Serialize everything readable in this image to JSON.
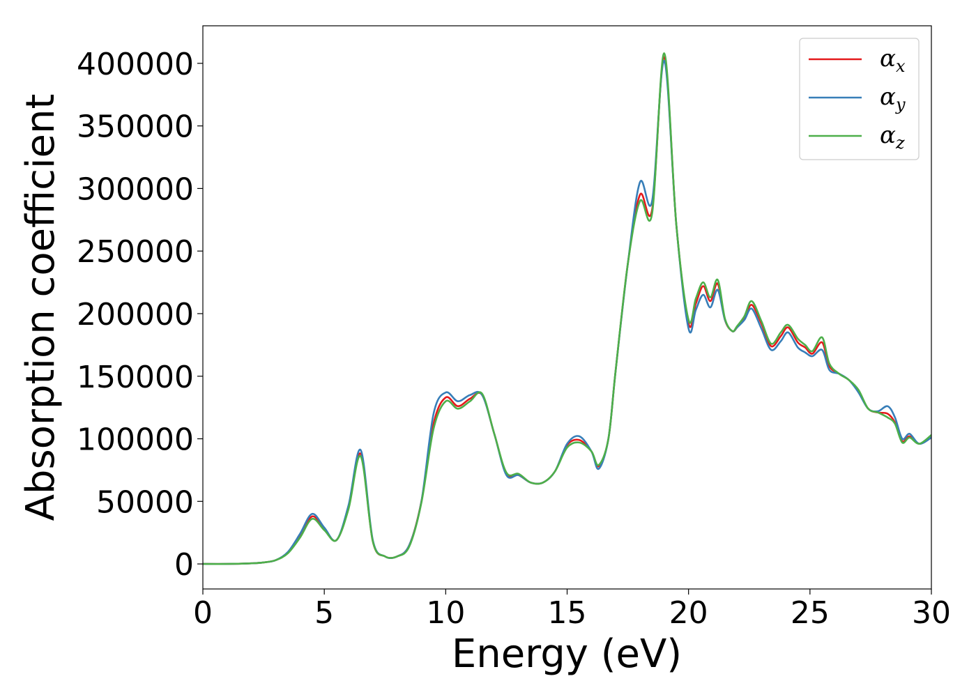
{
  "chart_data": {
    "type": "line",
    "xlabel": "Energy (eV)",
    "ylabel": "Absorption coefficient",
    "xlim": [
      0,
      30
    ],
    "ylim": [
      -20000,
      430000
    ],
    "xticks": [
      0,
      5,
      10,
      15,
      20,
      25,
      30
    ],
    "yticks": [
      0,
      50000,
      100000,
      150000,
      200000,
      250000,
      300000,
      350000,
      400000
    ],
    "grid": false,
    "legend_position": "top-right",
    "x": [
      0,
      1,
      2,
      2.5,
      3,
      3.5,
      4,
      4.5,
      5,
      5.5,
      6,
      6.5,
      7,
      7.5,
      8,
      8.5,
      9,
      9.5,
      10,
      10.5,
      11,
      11.5,
      12,
      12.5,
      13,
      13.5,
      14,
      14.5,
      15,
      15.5,
      16,
      16.3,
      16.7,
      17,
      17.5,
      18,
      18.5,
      19,
      19.5,
      20,
      20.3,
      20.6,
      20.9,
      21.2,
      21.5,
      21.8,
      22,
      22.3,
      22.6,
      23,
      23.4,
      23.8,
      24.1,
      24.5,
      24.8,
      25.1,
      25.5,
      25.8,
      26.2,
      26.6,
      27,
      27.4,
      27.8,
      28.2,
      28.5,
      28.8,
      29.1,
      29.5,
      30
    ],
    "series": [
      {
        "name": "α",
        "subscript": "x",
        "color": "#e41a1c",
        "values": [
          0,
          0,
          500,
          1200,
          3000,
          9000,
          22000,
          38000,
          28000,
          19000,
          45000,
          88000,
          18000,
          6000,
          6000,
          15000,
          50000,
          112000,
          133000,
          126000,
          132000,
          135000,
          104000,
          72000,
          71000,
          65000,
          65000,
          74000,
          95000,
          99000,
          90000,
          78000,
          100000,
          155000,
          240000,
          295000,
          283000,
          405000,
          270000,
          192000,
          208000,
          222000,
          210000,
          224000,
          195000,
          186000,
          189000,
          196000,
          207000,
          192000,
          174000,
          182000,
          189000,
          177000,
          173000,
          168000,
          177000,
          158000,
          152000,
          147000,
          138000,
          124000,
          121000,
          120000,
          113000,
          98000,
          102000,
          96000,
          101000
        ]
      },
      {
        "name": "α",
        "subscript": "y",
        "color": "#377eb8",
        "values": [
          0,
          0,
          500,
          1200,
          3000,
          9500,
          24000,
          40000,
          29000,
          19000,
          47000,
          91000,
          19000,
          6000,
          6000,
          15000,
          50000,
          120000,
          137000,
          130000,
          135000,
          135000,
          104000,
          71000,
          71000,
          65000,
          65000,
          74000,
          96000,
          102000,
          90000,
          76000,
          100000,
          155000,
          240000,
          305000,
          290000,
          402000,
          270000,
          188000,
          203000,
          215000,
          205000,
          219000,
          195000,
          186000,
          189000,
          195000,
          204000,
          188000,
          171000,
          178000,
          185000,
          173000,
          169000,
          166000,
          171000,
          155000,
          152000,
          147000,
          137000,
          124000,
          122000,
          126000,
          117000,
          100000,
          104000,
          96000,
          101000
        ]
      },
      {
        "name": "α",
        "subscript": "z",
        "color": "#4daf4a",
        "values": [
          0,
          0,
          500,
          1200,
          3000,
          8500,
          21000,
          36000,
          27000,
          19000,
          44000,
          86000,
          18000,
          6000,
          6000,
          14000,
          49000,
          108000,
          130000,
          124000,
          130000,
          136000,
          104000,
          73000,
          72000,
          65000,
          65000,
          74000,
          93000,
          97000,
          90000,
          79000,
          100000,
          155000,
          240000,
          290000,
          280000,
          408000,
          270000,
          195000,
          212000,
          225000,
          213000,
          227000,
          196000,
          186000,
          190000,
          198000,
          210000,
          194000,
          176000,
          185000,
          191000,
          180000,
          175000,
          170000,
          181000,
          160000,
          152000,
          147000,
          139000,
          124000,
          121000,
          117000,
          112000,
          97000,
          101000,
          96000,
          103000
        ]
      }
    ]
  }
}
